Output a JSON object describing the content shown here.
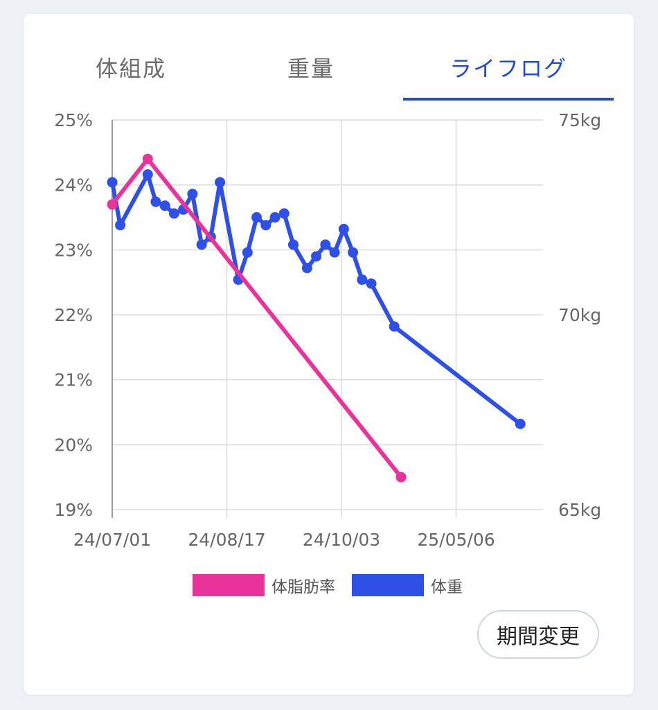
{
  "tabs": [
    {
      "label": "体組成",
      "active": false
    },
    {
      "label": "重量",
      "active": false
    },
    {
      "label": "ライフログ",
      "active": true
    }
  ],
  "period_button": "期間変更",
  "colors": {
    "accent": "#2449d6",
    "bodyfat": "#e8339a",
    "weight": "#2e50e6"
  },
  "chart_data": {
    "type": "line",
    "x_ticks": [
      "24/07/01",
      "24/08/17",
      "24/10/03",
      "25/05/06"
    ],
    "y_left": {
      "ticks": [
        "25%",
        "24%",
        "23%",
        "22%",
        "21%",
        "20%",
        "19%"
      ],
      "range": [
        19,
        25
      ],
      "unit": "%"
    },
    "y_right": {
      "ticks": [
        "75kg",
        "70kg",
        "65kg"
      ],
      "range": [
        65,
        75
      ],
      "unit": "kg"
    },
    "grid": true,
    "legend": {
      "position": "bottom-center"
    },
    "series": [
      {
        "name": "体脂肪率",
        "axis": "left",
        "points": [
          [
            0,
            23.7
          ],
          [
            1.55,
            24.4
          ],
          [
            12.6,
            19.5
          ]
        ]
      },
      {
        "name": "体重",
        "axis": "right",
        "points": [
          [
            0,
            73.4
          ],
          [
            0.35,
            72.3
          ],
          [
            1.55,
            73.6
          ],
          [
            1.9,
            72.9
          ],
          [
            2.3,
            72.8
          ],
          [
            2.7,
            72.6
          ],
          [
            3.1,
            72.7
          ],
          [
            3.5,
            73.1
          ],
          [
            3.9,
            71.8
          ],
          [
            4.3,
            72.0
          ],
          [
            4.7,
            73.4
          ],
          [
            5.5,
            70.9
          ],
          [
            5.9,
            71.6
          ],
          [
            6.3,
            72.5
          ],
          [
            6.7,
            72.3
          ],
          [
            7.1,
            72.5
          ],
          [
            7.5,
            72.6
          ],
          [
            7.9,
            71.8
          ],
          [
            8.5,
            71.2
          ],
          [
            8.9,
            71.5
          ],
          [
            9.3,
            71.8
          ],
          [
            9.7,
            71.6
          ],
          [
            10.1,
            72.2
          ],
          [
            10.5,
            71.6
          ],
          [
            10.9,
            70.9
          ],
          [
            11.3,
            70.8
          ],
          [
            12.3,
            69.7
          ],
          [
            17.8,
            67.2
          ]
        ]
      }
    ]
  }
}
